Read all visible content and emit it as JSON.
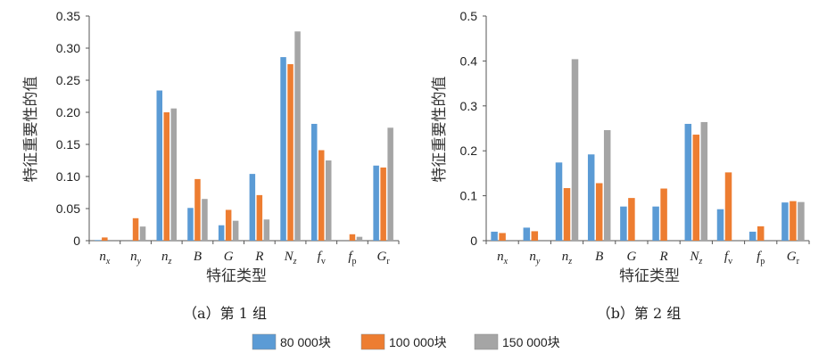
{
  "colors": {
    "series": [
      "#5b9bd5",
      "#ed7d31",
      "#a5a5a5"
    ],
    "axis": "#555555"
  },
  "legend": [
    "80 000块",
    "100 000块",
    "150 000块"
  ],
  "chart_data": [
    {
      "type": "bar",
      "caption": "（a）第 1 组",
      "xlabel": "特征类型",
      "ylabel": "特征重要性的值",
      "ylim": [
        0,
        0.35
      ],
      "yticks": [
        "0",
        "0.05",
        "0.10",
        "0.15",
        "0.20",
        "0.25",
        "0.30",
        "0.35"
      ],
      "categories": [
        {
          "base": "n",
          "sub": "x",
          "sub_italic": true
        },
        {
          "base": "n",
          "sub": "y",
          "sub_italic": true
        },
        {
          "base": "n",
          "sub": "z",
          "sub_italic": true
        },
        {
          "base": "B",
          "sub": "",
          "sub_italic": false
        },
        {
          "base": "G",
          "sub": "",
          "sub_italic": false
        },
        {
          "base": "R",
          "sub": "",
          "sub_italic": false
        },
        {
          "base": "N",
          "sub": "z",
          "sub_italic": true
        },
        {
          "base": "f",
          "sub": "v",
          "sub_italic": false
        },
        {
          "base": "f",
          "sub": "p",
          "sub_italic": false
        },
        {
          "base": "G",
          "sub": "r",
          "sub_italic": false
        }
      ],
      "series": [
        {
          "name": "80 000块",
          "values": [
            0.001,
            0.0,
            0.234,
            0.051,
            0.024,
            0.104,
            0.286,
            0.182,
            0.0,
            0.117
          ]
        },
        {
          "name": "100 000块",
          "values": [
            0.005,
            0.035,
            0.2,
            0.096,
            0.048,
            0.071,
            0.275,
            0.141,
            0.01,
            0.114
          ]
        },
        {
          "name": "150 000块",
          "values": [
            0.0,
            0.022,
            0.206,
            0.065,
            0.031,
            0.033,
            0.326,
            0.125,
            0.006,
            0.176
          ]
        }
      ]
    },
    {
      "type": "bar",
      "caption": "（b）第 2 组",
      "xlabel": "特征类型",
      "ylabel": "特征重要性的值",
      "ylim": [
        0,
        0.5
      ],
      "yticks": [
        "0",
        "0.1",
        "0.2",
        "0.3",
        "0.4",
        "0.5"
      ],
      "categories": [
        {
          "base": "n",
          "sub": "x",
          "sub_italic": true
        },
        {
          "base": "n",
          "sub": "y",
          "sub_italic": true
        },
        {
          "base": "n",
          "sub": "z",
          "sub_italic": true
        },
        {
          "base": "B",
          "sub": "",
          "sub_italic": false
        },
        {
          "base": "G",
          "sub": "",
          "sub_italic": false
        },
        {
          "base": "R",
          "sub": "",
          "sub_italic": false
        },
        {
          "base": "N",
          "sub": "z",
          "sub_italic": true
        },
        {
          "base": "f",
          "sub": "v",
          "sub_italic": false
        },
        {
          "base": "f",
          "sub": "p",
          "sub_italic": false
        },
        {
          "base": "G",
          "sub": "r",
          "sub_italic": false
        }
      ],
      "series": [
        {
          "name": "80 000块",
          "values": [
            0.02,
            0.029,
            0.174,
            0.192,
            0.076,
            0.076,
            0.26,
            0.07,
            0.02,
            0.085
          ]
        },
        {
          "name": "100 000块",
          "values": [
            0.017,
            0.021,
            0.117,
            0.128,
            0.095,
            0.116,
            0.236,
            0.152,
            0.032,
            0.088
          ]
        },
        {
          "name": "150 000块",
          "values": [
            0.0,
            0.0,
            0.404,
            0.246,
            0.0,
            0.0,
            0.264,
            0.0,
            0.0,
            0.086
          ]
        }
      ]
    }
  ]
}
